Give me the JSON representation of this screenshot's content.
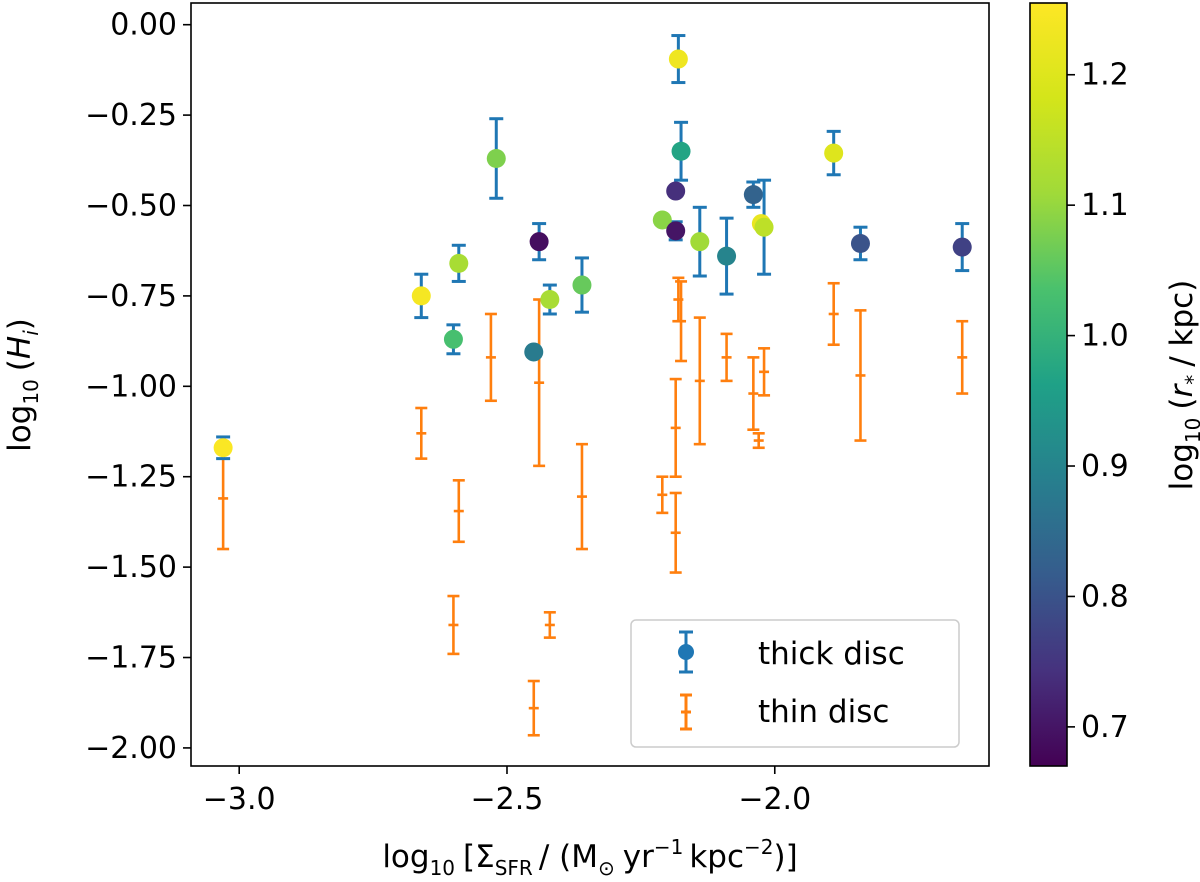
{
  "chart_data": {
    "type": "scatter",
    "title": "",
    "xlabel": "log10 [ΣSFR / (M⊙ yr⁻¹ kpc⁻²)]",
    "xlabel_parts": {
      "log": "log",
      "log_sub": "10",
      "open": "[Σ",
      "sfr_sub": "SFR",
      "mid": "/ (M",
      "sun_sub": "⊙",
      "yr": "yr",
      "yr_exp": "−1",
      "kpc": "kpc",
      "kpc_exp": "−2",
      "close": ")]"
    },
    "ylabel": "log10 (Hi)",
    "ylabel_parts": {
      "log": "log",
      "log_sub": "10",
      "open": "(",
      "var": "H",
      "var_sub": "i",
      "close": ")"
    },
    "colorbar_label": "log10 (r* / kpc)",
    "colorbar_label_parts": {
      "log": "log",
      "log_sub": "10",
      "open": "(",
      "var": "r",
      "var_sub": "*",
      "rest": "/ kpc)"
    },
    "xlim": [
      -3.09,
      -1.6
    ],
    "ylim": [
      -2.05,
      0.06
    ],
    "clim": [
      0.67,
      1.255
    ],
    "xticks": [
      -3.0,
      -2.5,
      -2.0
    ],
    "xtick_labels": [
      "−3.0",
      "−2.5",
      "−2.0"
    ],
    "yticks": [
      0.0,
      -0.25,
      -0.5,
      -0.75,
      -1.0,
      -1.25,
      -1.5,
      -1.75,
      -2.0
    ],
    "ytick_labels": [
      "0.00",
      "−0.25",
      "−0.50",
      "−0.75",
      "−1.00",
      "−1.25",
      "−1.50",
      "−1.75",
      "−2.00"
    ],
    "cticks": [
      0.7,
      0.8,
      0.9,
      1.0,
      1.1,
      1.2
    ],
    "ctick_labels": [
      "0.7",
      "0.8",
      "0.9",
      "1.0",
      "1.1",
      "1.2"
    ],
    "colors": {
      "thick_errorbar": "#1f77b4",
      "thin": "#ff7f0e",
      "axes": "#000000"
    },
    "legend": {
      "position": "lower right",
      "entries": [
        "thick disc",
        "thin disc"
      ]
    },
    "series": [
      {
        "name": "thick disc",
        "points": [
          {
            "x": -3.03,
            "y": -1.17,
            "err": 0.03,
            "c": 1.25
          },
          {
            "x": -2.66,
            "y": -0.75,
            "err": 0.06,
            "c": 1.24
          },
          {
            "x": -2.6,
            "y": -0.87,
            "err": 0.04,
            "c": 1.03
          },
          {
            "x": -2.59,
            "y": -0.66,
            "err": 0.05,
            "c": 1.12
          },
          {
            "x": -2.52,
            "y": -0.37,
            "err": 0.11,
            "c": 1.08
          },
          {
            "x": -2.45,
            "y": -0.905,
            "err": 0.0,
            "c": 0.88
          },
          {
            "x": -2.44,
            "y": -0.6,
            "err": 0.05,
            "c": 0.69
          },
          {
            "x": -2.42,
            "y": -0.76,
            "err": 0.04,
            "c": 1.12
          },
          {
            "x": -2.36,
            "y": -0.72,
            "err": 0.075,
            "c": 1.06
          },
          {
            "x": -2.21,
            "y": -0.54,
            "err": 0.0,
            "c": 1.09
          },
          {
            "x": -2.185,
            "y": -0.46,
            "err": 0.0,
            "c": 0.74
          },
          {
            "x": -2.185,
            "y": -0.57,
            "err": 0.025,
            "c": 0.7
          },
          {
            "x": -2.18,
            "y": -0.095,
            "err": 0.065,
            "c": 1.23
          },
          {
            "x": -2.175,
            "y": -0.35,
            "err": 0.08,
            "c": 0.97
          },
          {
            "x": -2.14,
            "y": -0.6,
            "err": 0.095,
            "c": 1.11
          },
          {
            "x": -2.09,
            "y": -0.64,
            "err": 0.105,
            "c": 0.9
          },
          {
            "x": -2.04,
            "y": -0.47,
            "err": 0.035,
            "c": 0.83
          },
          {
            "x": -2.025,
            "y": -0.55,
            "err": 0.0,
            "c": 1.22
          },
          {
            "x": -2.02,
            "y": -0.56,
            "err": 0.13,
            "c": 1.15
          },
          {
            "x": -1.89,
            "y": -0.355,
            "err": 0.06,
            "c": 1.2
          },
          {
            "x": -1.84,
            "y": -0.605,
            "err": 0.045,
            "c": 0.8
          },
          {
            "x": -1.65,
            "y": -0.615,
            "err": 0.065,
            "c": 0.77
          }
        ]
      },
      {
        "name": "thin disc",
        "points": [
          {
            "x": -3.03,
            "y": -1.31,
            "err": 0.14
          },
          {
            "x": -2.66,
            "y": -1.13,
            "err": 0.07
          },
          {
            "x": -2.6,
            "y": -1.66,
            "err": 0.08
          },
          {
            "x": -2.59,
            "y": -1.345,
            "err": 0.085
          },
          {
            "x": -2.53,
            "y": -0.92,
            "err": 0.12
          },
          {
            "x": -2.45,
            "y": -1.89,
            "err": 0.075
          },
          {
            "x": -2.44,
            "y": -0.99,
            "err": 0.23
          },
          {
            "x": -2.42,
            "y": -1.66,
            "err": 0.035
          },
          {
            "x": -2.36,
            "y": -1.305,
            "err": 0.145
          },
          {
            "x": -2.21,
            "y": -1.3,
            "err": 0.05
          },
          {
            "x": -2.185,
            "y": -1.115,
            "err": 0.135
          },
          {
            "x": -2.185,
            "y": -1.405,
            "err": 0.11
          },
          {
            "x": -2.18,
            "y": -0.76,
            "err": 0.06
          },
          {
            "x": -2.175,
            "y": -0.82,
            "err": 0.11
          },
          {
            "x": -2.14,
            "y": -0.985,
            "err": 0.175
          },
          {
            "x": -2.09,
            "y": -0.92,
            "err": 0.065
          },
          {
            "x": -2.04,
            "y": -1.02,
            "err": 0.1
          },
          {
            "x": -2.03,
            "y": -1.15,
            "err": 0.02
          },
          {
            "x": -2.02,
            "y": -0.96,
            "err": 0.065
          },
          {
            "x": -1.89,
            "y": -0.8,
            "err": 0.085
          },
          {
            "x": -1.84,
            "y": -0.97,
            "err": 0.18
          },
          {
            "x": -1.65,
            "y": -0.92,
            "err": 0.1
          }
        ]
      }
    ]
  }
}
